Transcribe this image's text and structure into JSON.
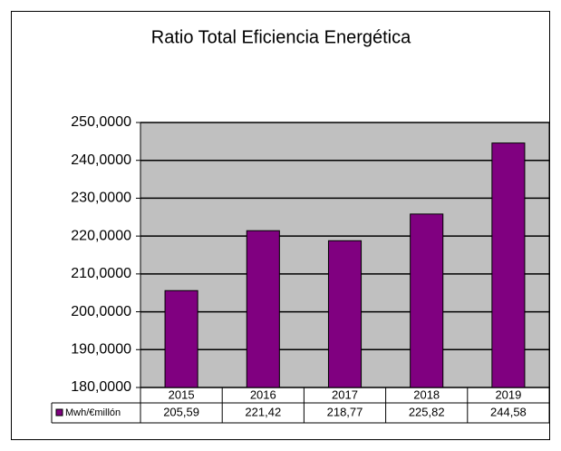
{
  "chart_data": {
    "type": "bar",
    "title": "Ratio Total Eficiencia Energética",
    "categories": [
      "2015",
      "2016",
      "2017",
      "2018",
      "2019"
    ],
    "series": [
      {
        "name": "Mwh/€millón",
        "color": "#800080",
        "values": [
          205.59,
          221.42,
          218.77,
          225.82,
          244.58
        ],
        "value_labels": [
          "205,59",
          "221,42",
          "218,77",
          "225,82",
          "244,58"
        ]
      }
    ],
    "ylim": [
      180,
      250
    ],
    "yticks": [
      {
        "value": 180,
        "label": "180,0000"
      },
      {
        "value": 190,
        "label": "190,0000"
      },
      {
        "value": 200,
        "label": "200,0000"
      },
      {
        "value": 210,
        "label": "210,0000"
      },
      {
        "value": 220,
        "label": "220,0000"
      },
      {
        "value": 230,
        "label": "230,0000"
      },
      {
        "value": 240,
        "label": "240,0000"
      },
      {
        "value": 250,
        "label": "250,0000"
      }
    ],
    "grid": true
  }
}
